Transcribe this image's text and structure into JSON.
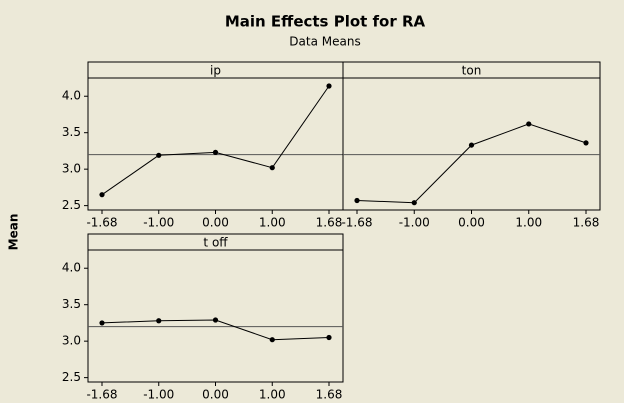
{
  "header": {
    "title": "Main Effects Plot for RA",
    "subtitle": "Data Means",
    "y_label": "Mean"
  },
  "chart_data": [
    {
      "type": "line",
      "title": "ip",
      "categories": [
        "-1.68",
        "-1.00",
        "0.00",
        "1.00",
        "1.68"
      ],
      "values": [
        2.65,
        3.19,
        3.23,
        3.02,
        4.14
      ],
      "color": "#000000",
      "reference_line": 3.2,
      "ylim": [
        2.44,
        4.25
      ],
      "yticks": [
        2.5,
        {
          "value": 3,
          "label": "3.0"
        },
        3.5,
        {
          "value": 4,
          "label": "4.0"
        }
      ]
    },
    {
      "type": "line",
      "title": "ton",
      "categories": [
        "-1.68",
        "-1.00",
        "0.00",
        "1.00",
        "1.68"
      ],
      "values": [
        2.57,
        2.54,
        3.33,
        3.62,
        3.36
      ],
      "color": "#000000",
      "reference_line": 3.2,
      "ylim": [
        2.44,
        4.25
      ]
    },
    {
      "type": "line",
      "title": "t off",
      "categories": [
        "-1.68",
        "-1.00",
        "0.00",
        "1.00",
        "1.68"
      ],
      "values": [
        3.25,
        3.28,
        3.29,
        3.02,
        3.05
      ],
      "color": "#000000",
      "reference_line": 3.2,
      "ylim": [
        2.44,
        4.25
      ],
      "yticks": [
        2.5,
        {
          "value": 3,
          "label": "3.0"
        },
        3.5,
        {
          "value": 4,
          "label": "4.0"
        }
      ]
    }
  ]
}
